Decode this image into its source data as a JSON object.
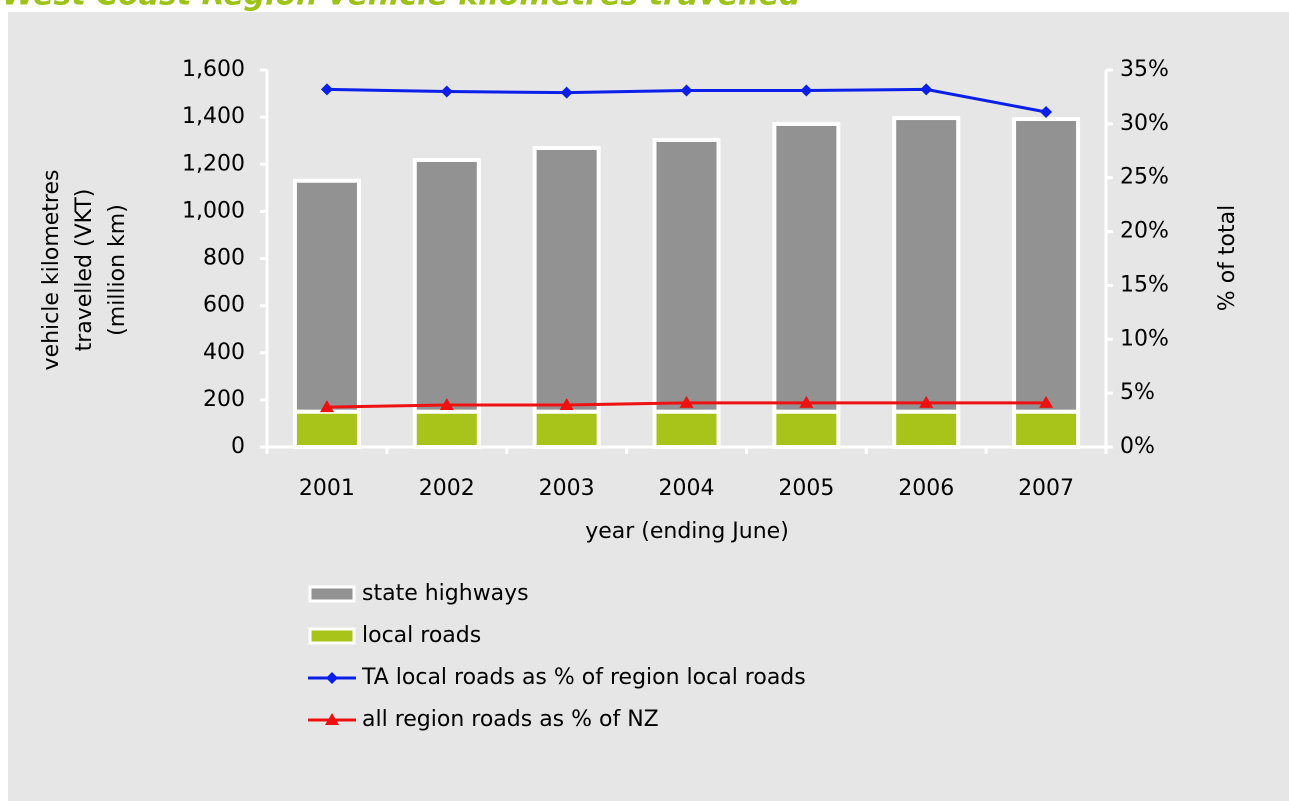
{
  "chart_data": {
    "type": "bar-line",
    "title": "West Coast Region vehicle kilometres travelled",
    "xlabel": "year (ending June)",
    "ylabel": [
      "vehicle kilometres",
      "travelled (VKT)",
      "(million km)"
    ],
    "y2label": "% of total",
    "categories": [
      "2001",
      "2002",
      "2003",
      "2004",
      "2005",
      "2006",
      "2007"
    ],
    "series": [
      {
        "name": "local roads",
        "type": "bar",
        "color": "#a8c41a",
        "values": [
          150,
          150,
          150,
          150,
          150,
          150,
          150
        ]
      },
      {
        "name": "state highways",
        "type": "bar",
        "color": "#929292",
        "values": [
          980,
          1068,
          1119,
          1153,
          1221,
          1246,
          1242
        ]
      },
      {
        "name": "TA local roads as % of region local roads",
        "type": "line",
        "axis": "y2",
        "marker": "diamond",
        "color": "#0a1fe8",
        "values": [
          33.2,
          33.0,
          32.9,
          33.1,
          33.1,
          33.2,
          31.1
        ]
      },
      {
        "name": "all region roads as % of NZ",
        "type": "line",
        "axis": "y2",
        "marker": "triangle",
        "color": "#ee1111",
        "values": [
          3.7,
          3.9,
          3.9,
          4.1,
          4.1,
          4.1,
          4.1
        ]
      }
    ],
    "legend_order": [
      1,
      0,
      2,
      3
    ],
    "ylim": [
      0,
      1600
    ],
    "yticks": [
      0,
      200,
      400,
      600,
      800,
      {
        "value": 1000,
        "label": "1,000"
      },
      {
        "value": 1200,
        "label": "1,200"
      },
      {
        "value": 1400,
        "label": "1,400"
      },
      {
        "value": 1600,
        "label": "1,600"
      }
    ],
    "y2lim": [
      0,
      35
    ],
    "y2ticks": [
      {
        "value": 0,
        "label": "0%"
      },
      {
        "value": 5,
        "label": "5%"
      },
      {
        "value": 10,
        "label": "10%"
      },
      {
        "value": 15,
        "label": "15%"
      },
      {
        "value": 20,
        "label": "20%"
      },
      {
        "value": 25,
        "label": "25%"
      },
      {
        "value": 30,
        "label": "30%"
      },
      {
        "value": 35,
        "label": "35%"
      }
    ]
  }
}
